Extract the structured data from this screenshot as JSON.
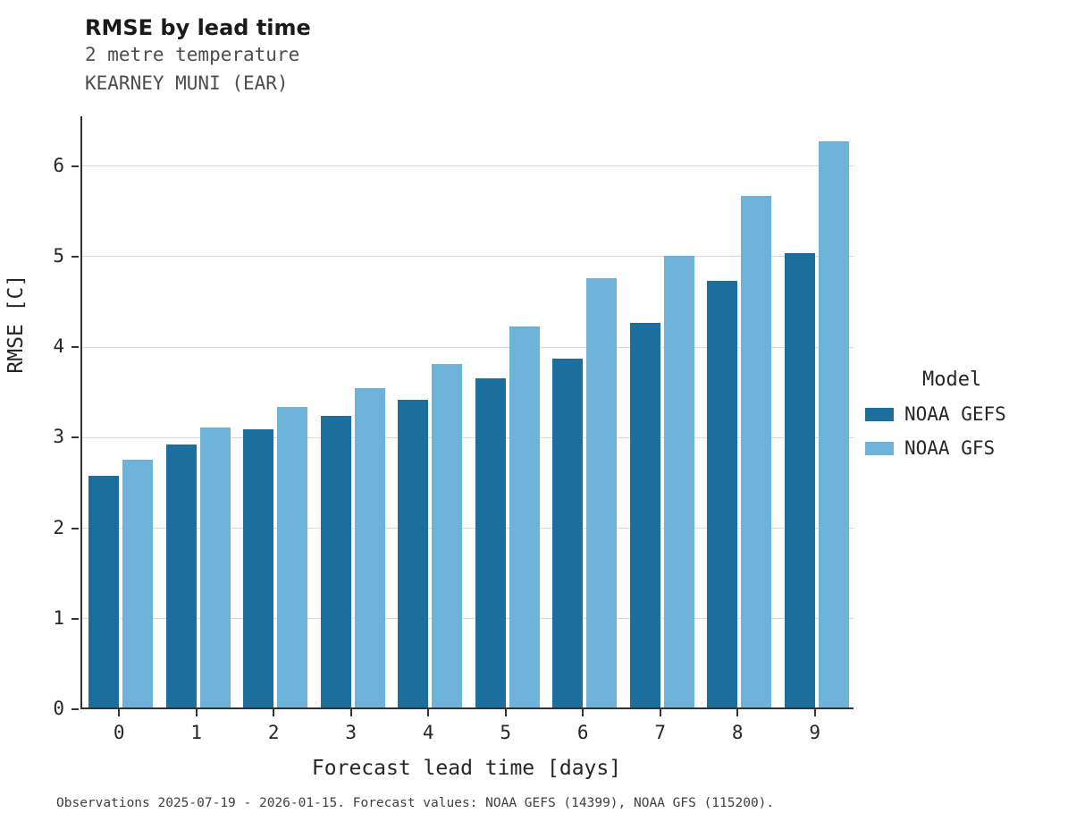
{
  "title": "RMSE by lead time",
  "subtitle_line1": "2 metre temperature",
  "subtitle_line2": "KEARNEY MUNI (EAR)",
  "footer": "Observations 2025-07-19 - 2026-01-15. Forecast values: NOAA GEFS (14399), NOAA GFS (115200).",
  "legend": {
    "title": "Model",
    "entries": [
      {
        "label": "NOAA GEFS",
        "color": "#1c6e9c"
      },
      {
        "label": "NOAA GFS",
        "color": "#6db2d9"
      }
    ]
  },
  "chart_data": {
    "type": "bar",
    "title": "RMSE by lead time",
    "subtitle": [
      "2 metre temperature",
      "KEARNEY MUNI (EAR)"
    ],
    "xlabel": "Forecast lead time [days]",
    "ylabel": "RMSE [C]",
    "categories": [
      "0",
      "1",
      "2",
      "3",
      "4",
      "5",
      "6",
      "7",
      "8",
      "9"
    ],
    "series": [
      {
        "name": "NOAA GEFS",
        "color": "#1c6e9c",
        "values": [
          2.56,
          2.9,
          3.07,
          3.22,
          3.4,
          3.64,
          3.85,
          4.25,
          4.71,
          5.02
        ]
      },
      {
        "name": "NOAA GFS",
        "color": "#6db2d9",
        "values": [
          2.74,
          3.09,
          3.32,
          3.53,
          3.79,
          4.21,
          4.74,
          4.99,
          5.65,
          6.25
        ]
      }
    ],
    "ylim": [
      0,
      6.55
    ],
    "yticks": [
      0,
      1,
      2,
      3,
      4,
      5,
      6
    ],
    "grid": true,
    "legend_position": "right",
    "annotation": "Observations 2025-07-19 - 2026-01-15. Forecast values: NOAA GEFS (14399), NOAA GFS (115200)."
  }
}
